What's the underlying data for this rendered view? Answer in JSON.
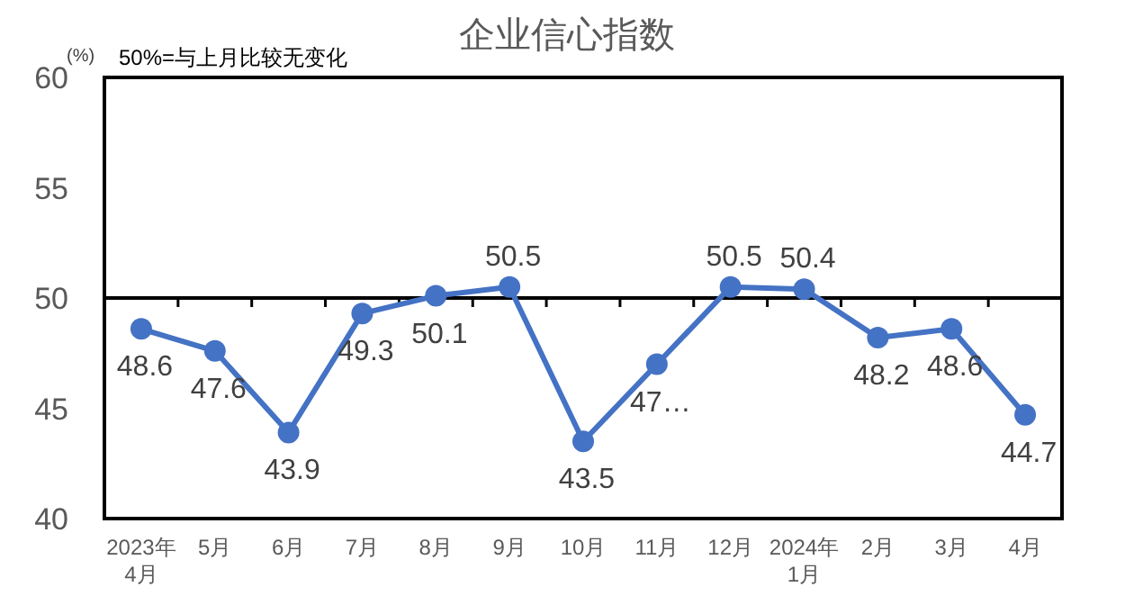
{
  "chart_data": {
    "type": "line",
    "title": "企业信心指数",
    "ylabel": "(%)",
    "annotations": [
      "50%=与上月比较无变化"
    ],
    "categories": [
      "2023年\n4月",
      "5月",
      "6月",
      "7月",
      "8月",
      "9月",
      "10月",
      "11月",
      "12月",
      "2024年\n1月",
      "2月",
      "3月",
      "4月"
    ],
    "series": [
      {
        "color": "#4472c4",
        "values": [
          48.6,
          47.6,
          43.9,
          49.3,
          50.1,
          50.5,
          43.5,
          47.0,
          50.5,
          50.4,
          48.2,
          48.6,
          44.7
        ],
        "value_labels": [
          "48.6",
          "47.6",
          "43.9",
          "49.3",
          "50.1",
          "50.5",
          "43.5",
          "47…",
          "50.5",
          "50.4",
          "48.2",
          "48.6",
          "44.7"
        ]
      }
    ],
    "ylim": [
      40,
      60
    ],
    "yticks": [
      40,
      45,
      50,
      55,
      60
    ],
    "ref_lines": [
      {
        "axis": "y",
        "value": 50,
        "color": "#000000"
      }
    ],
    "marker": "circle",
    "line_style": "solid"
  }
}
